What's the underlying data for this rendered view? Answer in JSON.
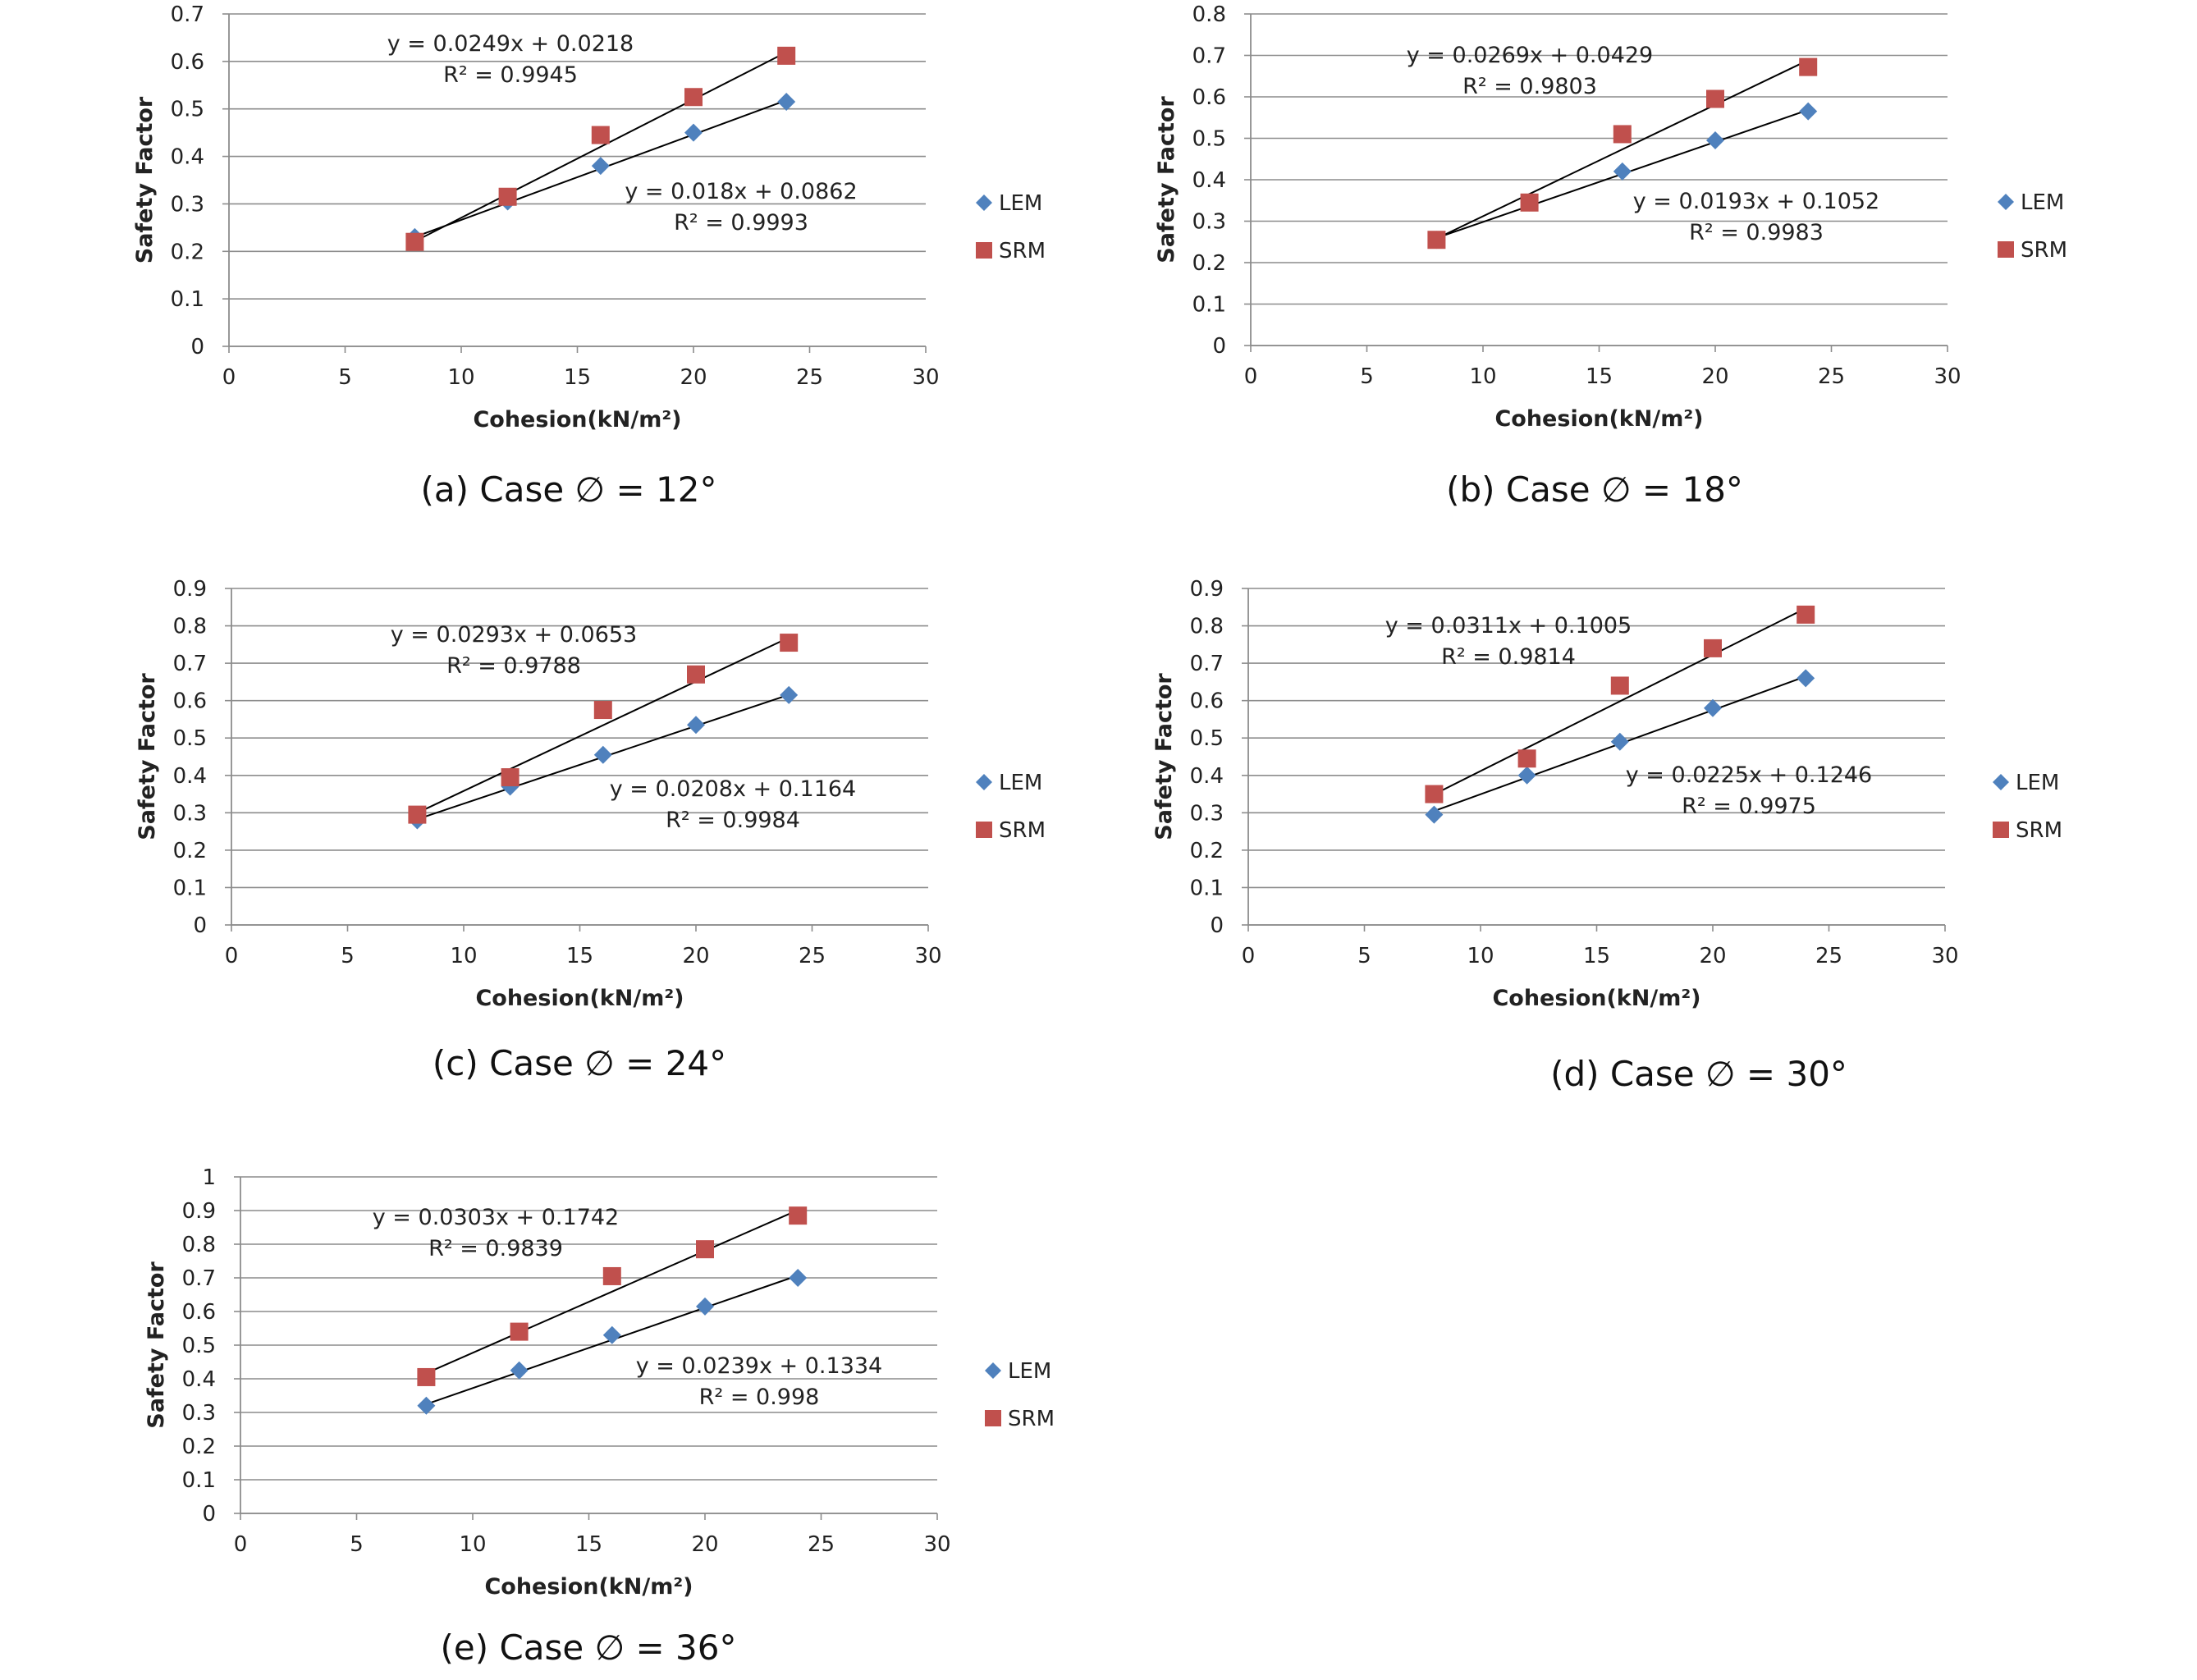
{
  "chart_data": [
    {
      "type": "scatter",
      "caption": "(a) Case ∅ = 12°",
      "xlabel": "Cohesion(kN/m²)",
      "ylabel": "Safety Factor",
      "xlim": [
        0,
        30
      ],
      "ylim": [
        0,
        0.7
      ],
      "xticks": [
        "0",
        "5",
        "10",
        "15",
        "20",
        "25",
        "30"
      ],
      "yticks": [
        "0",
        "0.1",
        "0.2",
        "0.3",
        "0.4",
        "0.5",
        "0.6",
        "0.7"
      ],
      "grid": true,
      "legend_position": "right",
      "series": [
        {
          "name": "LEM",
          "marker": "diamond",
          "color": "#4f81bd",
          "x": [
            8,
            12,
            16,
            20,
            24
          ],
          "y": [
            0.23,
            0.305,
            0.38,
            0.45,
            0.515
          ],
          "trendline": {
            "slope": 0.018,
            "intercept": 0.0862,
            "equation": "y = 0.018x + 0.0862",
            "r2": "R² = 0.9993"
          }
        },
        {
          "name": "SRM",
          "marker": "square",
          "color": "#c0504d",
          "x": [
            8,
            12,
            16,
            20,
            24
          ],
          "y": [
            0.22,
            0.315,
            0.445,
            0.525,
            0.612
          ],
          "trendline": {
            "slope": 0.0249,
            "intercept": 0.0218,
            "equation": "y = 0.0249x + 0.0218",
            "r2": "R² = 0.9945"
          }
        }
      ]
    },
    {
      "type": "scatter",
      "caption": "(b) Case ∅ = 18°",
      "xlabel": "Cohesion(kN/m²)",
      "ylabel": "Safety Factor",
      "xlim": [
        0,
        30
      ],
      "ylim": [
        0,
        0.8
      ],
      "xticks": [
        "0",
        "5",
        "10",
        "15",
        "20",
        "25",
        "30"
      ],
      "yticks": [
        "0",
        "0.1",
        "0.2",
        "0.3",
        "0.4",
        "0.5",
        "0.6",
        "0.7",
        "0.8"
      ],
      "grid": true,
      "legend_position": "right",
      "series": [
        {
          "name": "LEM",
          "marker": "diamond",
          "color": "#4f81bd",
          "x": [
            8,
            12,
            16,
            20,
            24
          ],
          "y": [
            0.255,
            0.345,
            0.42,
            0.495,
            0.565
          ],
          "trendline": {
            "slope": 0.0193,
            "intercept": 0.1052,
            "equation": "y = 0.0193x + 0.1052",
            "r2": "R² = 0.9983"
          }
        },
        {
          "name": "SRM",
          "marker": "square",
          "color": "#c0504d",
          "x": [
            8,
            12,
            16,
            20,
            24
          ],
          "y": [
            0.255,
            0.345,
            0.51,
            0.595,
            0.672
          ],
          "trendline": {
            "slope": 0.0269,
            "intercept": 0.0429,
            "equation": "y = 0.0269x + 0.0429",
            "r2": "R² = 0.9803"
          }
        }
      ]
    },
    {
      "type": "scatter",
      "caption": "(c) Case ∅ = 24°",
      "xlabel": "Cohesion(kN/m²)",
      "ylabel": "Safety Factor",
      "xlim": [
        0,
        30
      ],
      "ylim": [
        0,
        0.9
      ],
      "xticks": [
        "0",
        "5",
        "10",
        "15",
        "20",
        "25",
        "30"
      ],
      "yticks": [
        "0",
        "0.1",
        "0.2",
        "0.3",
        "0.4",
        "0.5",
        "0.6",
        "0.7",
        "0.8",
        "0.9"
      ],
      "grid": true,
      "legend_position": "right",
      "series": [
        {
          "name": "LEM",
          "marker": "diamond",
          "color": "#4f81bd",
          "x": [
            8,
            12,
            16,
            20,
            24
          ],
          "y": [
            0.28,
            0.37,
            0.455,
            0.535,
            0.615
          ],
          "trendline": {
            "slope": 0.0208,
            "intercept": 0.1164,
            "equation": "y = 0.0208x + 0.1164",
            "r2": "R² = 0.9984"
          }
        },
        {
          "name": "SRM",
          "marker": "square",
          "color": "#c0504d",
          "x": [
            8,
            12,
            16,
            20,
            24
          ],
          "y": [
            0.295,
            0.395,
            0.575,
            0.67,
            0.755
          ],
          "trendline": {
            "slope": 0.0293,
            "intercept": 0.0653,
            "equation": "y = 0.0293x + 0.0653",
            "r2": "R² = 0.9788"
          }
        }
      ]
    },
    {
      "type": "scatter",
      "caption": "(d) Case ∅ = 30°",
      "xlabel": "Cohesion(kN/m²)",
      "ylabel": "Safety Factor",
      "xlim": [
        0,
        30
      ],
      "ylim": [
        0,
        0.9
      ],
      "xticks": [
        "0",
        "5",
        "10",
        "15",
        "20",
        "25",
        "30"
      ],
      "yticks": [
        "0",
        "0.1",
        "0.2",
        "0.3",
        "0.4",
        "0.5",
        "0.6",
        "0.7",
        "0.8",
        "0.9"
      ],
      "grid": true,
      "legend_position": "right",
      "series": [
        {
          "name": "LEM",
          "marker": "diamond",
          "color": "#4f81bd",
          "x": [
            8,
            12,
            16,
            20,
            24
          ],
          "y": [
            0.295,
            0.4,
            0.49,
            0.58,
            0.66
          ],
          "trendline": {
            "slope": 0.0225,
            "intercept": 0.1246,
            "equation": "y = 0.0225x + 0.1246",
            "r2": "R² = 0.9975"
          }
        },
        {
          "name": "SRM",
          "marker": "square",
          "color": "#c0504d",
          "x": [
            8,
            12,
            16,
            20,
            24
          ],
          "y": [
            0.35,
            0.445,
            0.64,
            0.74,
            0.83
          ],
          "trendline": {
            "slope": 0.0311,
            "intercept": 0.1005,
            "equation": "y = 0.0311x + 0.1005",
            "r2": "R² = 0.9814"
          }
        }
      ]
    },
    {
      "type": "scatter",
      "caption": "(e) Case ∅ = 36°",
      "xlabel": "Cohesion(kN/m²)",
      "ylabel": "Safety Factor",
      "xlim": [
        0,
        30
      ],
      "ylim": [
        0,
        1
      ],
      "xticks": [
        "0",
        "5",
        "10",
        "15",
        "20",
        "25",
        "30"
      ],
      "yticks": [
        "0",
        "0.1",
        "0.2",
        "0.3",
        "0.4",
        "0.5",
        "0.6",
        "0.7",
        "0.8",
        "0.9",
        "1"
      ],
      "grid": true,
      "legend_position": "right",
      "series": [
        {
          "name": "LEM",
          "marker": "diamond",
          "color": "#4f81bd",
          "x": [
            8,
            12,
            16,
            20,
            24
          ],
          "y": [
            0.32,
            0.425,
            0.53,
            0.615,
            0.7
          ],
          "trendline": {
            "slope": 0.0239,
            "intercept": 0.1334,
            "equation": "y = 0.0239x + 0.1334",
            "r2": "R² = 0.998"
          }
        },
        {
          "name": "SRM",
          "marker": "square",
          "color": "#c0504d",
          "x": [
            8,
            12,
            16,
            20,
            24
          ],
          "y": [
            0.405,
            0.54,
            0.705,
            0.785,
            0.885
          ],
          "trendline": {
            "slope": 0.0303,
            "intercept": 0.1742,
            "equation": "y = 0.0303x + 0.1742",
            "r2": "R² = 0.9839"
          }
        }
      ]
    }
  ]
}
